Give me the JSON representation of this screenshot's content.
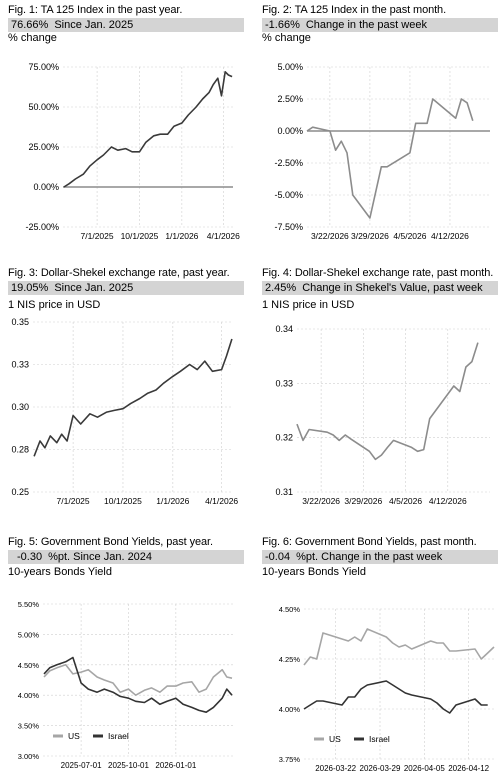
{
  "figures": [
    {
      "title": "Fig. 1: TA 125 Index in the past year.",
      "stat_value": "76.66%",
      "stat_text": "Since Jan. 2025",
      "unit_label": "% change"
    },
    {
      "title": "Fig. 2: TA 125 Index in the past month.",
      "stat_value": "-1.66%",
      "stat_text": "Change in the past week",
      "unit_label": "% change"
    },
    {
      "title": "Fig. 3: Dollar-Shekel exchange rate, past year.",
      "stat_value": "19.05%",
      "stat_text": "Since Jan. 2025",
      "unit_label": "1 NIS price in USD"
    },
    {
      "title": "Fig. 4: Dollar-Shekel exchange rate, past month.",
      "stat_value": "2.45%",
      "stat_text": "Change in Shekel's Value, past week",
      "unit_label": "1 NIS price in USD"
    },
    {
      "title": "Fig. 5: Government Bond Yields, past year.",
      "stat_value": "-0.30",
      "stat_text": "%pt. Since Jan. 2024",
      "unit_label": "10-years Bonds Yield"
    },
    {
      "title": "Fig. 6: Government Bond Yields, past month.",
      "stat_value": "-0.04",
      "stat_text": "%pt. Change in the past week",
      "unit_label": "10-years Bonds Yield"
    }
  ],
  "chart_data": [
    {
      "type": "line",
      "ylim": [
        -25,
        75
      ],
      "y_ticks": [
        -25,
        0,
        25,
        50,
        75
      ],
      "y_tick_labels": [
        "-25.00%",
        "0.00%",
        "25.00%",
        "50.00%",
        "75.00%"
      ],
      "x_ticks": [
        "2025-07-01",
        "2025-10-01",
        "2026-01-01",
        "2026-04-01"
      ],
      "x_tick_labels": [
        "7/1/2025",
        "10/1/2025",
        "1/1/2026",
        "4/1/2026"
      ],
      "xlim": [
        "2025-04-18",
        "2026-04-22"
      ],
      "reference_line": 0,
      "colors": {
        "series": "#3a3a3a",
        "reference": "#8c8c8c",
        "grid": "#cfcfcf"
      },
      "series": [
        {
          "x": [
            "2025-04-20",
            "2025-05-01",
            "2025-05-15",
            "2025-06-01",
            "2025-06-15",
            "2025-07-01",
            "2025-07-15",
            "2025-08-01",
            "2025-08-15",
            "2025-09-01",
            "2025-09-15",
            "2025-10-01",
            "2025-10-15",
            "2025-11-01",
            "2025-11-15",
            "2025-12-01",
            "2025-12-15",
            "2026-01-01",
            "2026-01-15",
            "2026-02-01",
            "2026-02-15",
            "2026-03-01",
            "2026-03-10",
            "2026-03-20",
            "2026-03-28",
            "2026-04-05",
            "2026-04-12",
            "2026-04-20"
          ],
          "values": [
            0,
            2,
            5,
            8,
            13,
            17,
            20,
            25,
            23,
            24,
            22,
            22,
            28,
            32,
            33,
            33,
            38,
            40,
            45,
            50,
            55,
            59,
            64,
            68,
            57,
            72,
            70,
            69
          ]
        }
      ]
    },
    {
      "type": "line",
      "ylim": [
        -7.5,
        5
      ],
      "y_ticks": [
        -7.5,
        -5,
        -2.5,
        0,
        2.5,
        5
      ],
      "y_tick_labels": [
        "-7.50%",
        "-5.00%",
        "-2.50%",
        "0.00%",
        "2.50%",
        "5.00%"
      ],
      "x_ticks": [
        "2026-03-22",
        "2026-03-29",
        "2026-04-05",
        "2026-04-12"
      ],
      "x_tick_labels": [
        "3/22/2026",
        "3/29/2026",
        "4/5/2026",
        "4/12/2026"
      ],
      "xlim": [
        "2026-03-18",
        "2026-04-19"
      ],
      "reference_line": 0,
      "colors": {
        "series": "#8c8c8c",
        "reference": "#8c8c8c",
        "grid": "#cfcfcf"
      },
      "series": [
        {
          "x": [
            "2026-03-18",
            "2026-03-19",
            "2026-03-22",
            "2026-03-23",
            "2026-03-24",
            "2026-03-25",
            "2026-03-26",
            "2026-03-29",
            "2026-03-30",
            "2026-03-31",
            "2026-04-01",
            "2026-04-05",
            "2026-04-06",
            "2026-04-08",
            "2026-04-09",
            "2026-04-13",
            "2026-04-14",
            "2026-04-15",
            "2026-04-16"
          ],
          "values": [
            0,
            0.3,
            0,
            -1.5,
            -0.8,
            -1.7,
            -5.0,
            -6.8,
            -4.8,
            -2.8,
            -2.8,
            -1.7,
            0.6,
            0.6,
            2.5,
            1.0,
            2.5,
            2.2,
            0.8
          ]
        }
      ]
    },
    {
      "type": "line",
      "ylim": [
        0.25,
        0.35
      ],
      "y_ticks": [
        0.25,
        0.275,
        0.3,
        0.325,
        0.35
      ],
      "y_tick_labels": [
        "0.25",
        "0.28",
        "0.30",
        "0.33",
        "0.35"
      ],
      "x_ticks": [
        "2025-07-01",
        "2025-10-01",
        "2026-01-01",
        "2026-04-01"
      ],
      "x_tick_labels": [
        "7/1/2025",
        "10/1/2025",
        "1/1/2026",
        "4/1/2026"
      ],
      "xlim": [
        "2025-04-18",
        "2026-04-22"
      ],
      "colors": {
        "series": "#3a3a3a",
        "grid": "#cfcfcf"
      },
      "series": [
        {
          "x": [
            "2025-04-20",
            "2025-05-01",
            "2025-05-10",
            "2025-05-20",
            "2025-06-01",
            "2025-06-10",
            "2025-06-20",
            "2025-07-01",
            "2025-07-15",
            "2025-08-01",
            "2025-08-15",
            "2025-09-01",
            "2025-09-15",
            "2025-10-01",
            "2025-10-15",
            "2025-11-01",
            "2025-11-15",
            "2025-12-01",
            "2025-12-15",
            "2026-01-01",
            "2026-01-15",
            "2026-02-01",
            "2026-02-15",
            "2026-03-01",
            "2026-03-15",
            "2026-04-01",
            "2026-04-10",
            "2026-04-20"
          ],
          "values": [
            0.271,
            0.28,
            0.276,
            0.283,
            0.279,
            0.284,
            0.28,
            0.295,
            0.29,
            0.296,
            0.294,
            0.297,
            0.298,
            0.299,
            0.302,
            0.305,
            0.308,
            0.31,
            0.314,
            0.318,
            0.321,
            0.325,
            0.322,
            0.327,
            0.321,
            0.322,
            0.33,
            0.34
          ]
        }
      ]
    },
    {
      "type": "line",
      "ylim": [
        0.31,
        0.34
      ],
      "y_ticks": [
        0.31,
        0.32,
        0.33,
        0.34
      ],
      "y_tick_labels": [
        "0.31",
        "0.32",
        "0.33",
        "0.34"
      ],
      "x_ticks": [
        "2026-03-22",
        "2026-03-29",
        "2026-04-05",
        "2026-04-12"
      ],
      "x_tick_labels": [
        "3/22/2026",
        "3/29/2026",
        "4/5/2026",
        "4/12/2026"
      ],
      "xlim": [
        "2026-03-18",
        "2026-04-19"
      ],
      "colors": {
        "series": "#8c8c8c",
        "grid": "#cfcfcf"
      },
      "series": [
        {
          "x": [
            "2026-03-18",
            "2026-03-19",
            "2026-03-20",
            "2026-03-23",
            "2026-03-24",
            "2026-03-25",
            "2026-03-26",
            "2026-03-27",
            "2026-03-30",
            "2026-03-31",
            "2026-04-01",
            "2026-04-02",
            "2026-04-03",
            "2026-04-06",
            "2026-04-07",
            "2026-04-08",
            "2026-04-09",
            "2026-04-13",
            "2026-04-14",
            "2026-04-15",
            "2026-04-16",
            "2026-04-17"
          ],
          "values": [
            0.3225,
            0.3195,
            0.3215,
            0.321,
            0.3205,
            0.3195,
            0.3205,
            0.3197,
            0.3175,
            0.316,
            0.3168,
            0.3182,
            0.3195,
            0.3182,
            0.3175,
            0.3178,
            0.3235,
            0.3295,
            0.3285,
            0.333,
            0.334,
            0.3375
          ]
        }
      ]
    },
    {
      "type": "line",
      "ylim": [
        3.0,
        5.5
      ],
      "y_ticks": [
        3.0,
        3.5,
        4.0,
        4.5,
        5.0,
        5.5
      ],
      "y_tick_labels": [
        "3.00%",
        "3.50%",
        "4.00%",
        "4.50%",
        "5.00%",
        "5.50%"
      ],
      "x_ticks": [
        "2025-07-01",
        "2025-10-01",
        "2026-01-01"
      ],
      "x_tick_labels": [
        "2025-07-01",
        "2025-10-01",
        "2026-01-01"
      ],
      "xlim": [
        "2025-04-18",
        "2026-04-22"
      ],
      "legend": "lower-left",
      "colors": {
        "us": "#a6a6a6",
        "israel": "#333333",
        "grid": "#cfcfcf"
      },
      "series": [
        {
          "name": "US",
          "x": [
            "2025-04-20",
            "2025-05-01",
            "2025-05-15",
            "2025-06-01",
            "2025-06-15",
            "2025-07-01",
            "2025-07-15",
            "2025-08-01",
            "2025-08-15",
            "2025-09-01",
            "2025-09-15",
            "2025-10-01",
            "2025-10-15",
            "2025-11-01",
            "2025-11-15",
            "2025-12-01",
            "2025-12-15",
            "2026-01-01",
            "2026-01-15",
            "2026-02-01",
            "2026-02-15",
            "2026-03-01",
            "2026-03-15",
            "2026-04-01",
            "2026-04-10",
            "2026-04-20"
          ],
          "values": [
            4.3,
            4.4,
            4.45,
            4.5,
            4.35,
            4.38,
            4.42,
            4.3,
            4.25,
            4.2,
            4.05,
            4.1,
            4.0,
            4.08,
            4.12,
            4.05,
            4.15,
            4.15,
            4.2,
            4.22,
            4.05,
            4.1,
            4.3,
            4.42,
            4.3,
            4.28
          ]
        },
        {
          "name": "Israel",
          "x": [
            "2025-04-20",
            "2025-05-01",
            "2025-05-15",
            "2025-06-01",
            "2025-06-15",
            "2025-07-01",
            "2025-07-15",
            "2025-08-01",
            "2025-08-15",
            "2025-09-01",
            "2025-09-15",
            "2025-10-01",
            "2025-10-15",
            "2025-11-01",
            "2025-11-15",
            "2025-12-01",
            "2025-12-15",
            "2026-01-01",
            "2026-01-15",
            "2026-02-01",
            "2026-02-15",
            "2026-03-01",
            "2026-03-15",
            "2026-04-01",
            "2026-04-10",
            "2026-04-20"
          ],
          "values": [
            4.35,
            4.45,
            4.5,
            4.55,
            4.62,
            4.2,
            4.1,
            4.05,
            4.1,
            4.05,
            3.98,
            3.95,
            3.9,
            3.88,
            3.95,
            3.85,
            3.9,
            3.95,
            3.85,
            3.8,
            3.75,
            3.72,
            3.8,
            3.95,
            4.1,
            4.0
          ]
        }
      ]
    },
    {
      "type": "line",
      "ylim": [
        3.75,
        4.5
      ],
      "y_ticks": [
        3.75,
        4.0,
        4.25,
        4.5
      ],
      "y_tick_labels": [
        "3.75%",
        "4.00%",
        "4.25%",
        "4.50%"
      ],
      "x_ticks": [
        "2026-03-22",
        "2026-03-29",
        "2026-04-05",
        "2026-04-12"
      ],
      "x_tick_labels": [
        "2026-03-22",
        "2026-03-29",
        "2026-04-05",
        "2026-04-12"
      ],
      "xlim": [
        "2026-03-17",
        "2026-04-16"
      ],
      "legend": "lower-left",
      "colors": {
        "us": "#a6a6a6",
        "israel": "#333333",
        "grid": "#cfcfcf"
      },
      "series": [
        {
          "name": "US",
          "x": [
            "2026-03-17",
            "2026-03-18",
            "2026-03-19",
            "2026-03-20",
            "2026-03-23",
            "2026-03-24",
            "2026-03-25",
            "2026-03-26",
            "2026-03-27",
            "2026-03-30",
            "2026-03-31",
            "2026-04-01",
            "2026-04-02",
            "2026-04-03",
            "2026-04-06",
            "2026-04-07",
            "2026-04-08",
            "2026-04-09",
            "2026-04-10",
            "2026-04-13",
            "2026-04-14",
            "2026-04-15",
            "2026-04-16"
          ],
          "values": [
            4.22,
            4.26,
            4.25,
            4.38,
            4.35,
            4.34,
            4.36,
            4.34,
            4.4,
            4.36,
            4.33,
            4.31,
            4.32,
            4.3,
            4.34,
            4.33,
            4.33,
            4.29,
            4.29,
            4.3,
            4.25,
            4.28,
            4.31
          ]
        },
        {
          "name": "Israel",
          "x": [
            "2026-03-17",
            "2026-03-18",
            "2026-03-19",
            "2026-03-20",
            "2026-03-23",
            "2026-03-24",
            "2026-03-25",
            "2026-03-26",
            "2026-03-27",
            "2026-03-30",
            "2026-03-31",
            "2026-04-01",
            "2026-04-02",
            "2026-04-03",
            "2026-04-06",
            "2026-04-07",
            "2026-04-08",
            "2026-04-09",
            "2026-04-10",
            "2026-04-13",
            "2026-04-14",
            "2026-04-15"
          ],
          "values": [
            4.0,
            4.02,
            4.04,
            4.04,
            4.02,
            4.06,
            4.06,
            4.1,
            4.12,
            4.14,
            4.12,
            4.1,
            4.08,
            4.07,
            4.05,
            4.03,
            4.0,
            3.98,
            4.02,
            4.05,
            4.02,
            4.02
          ]
        }
      ]
    }
  ]
}
